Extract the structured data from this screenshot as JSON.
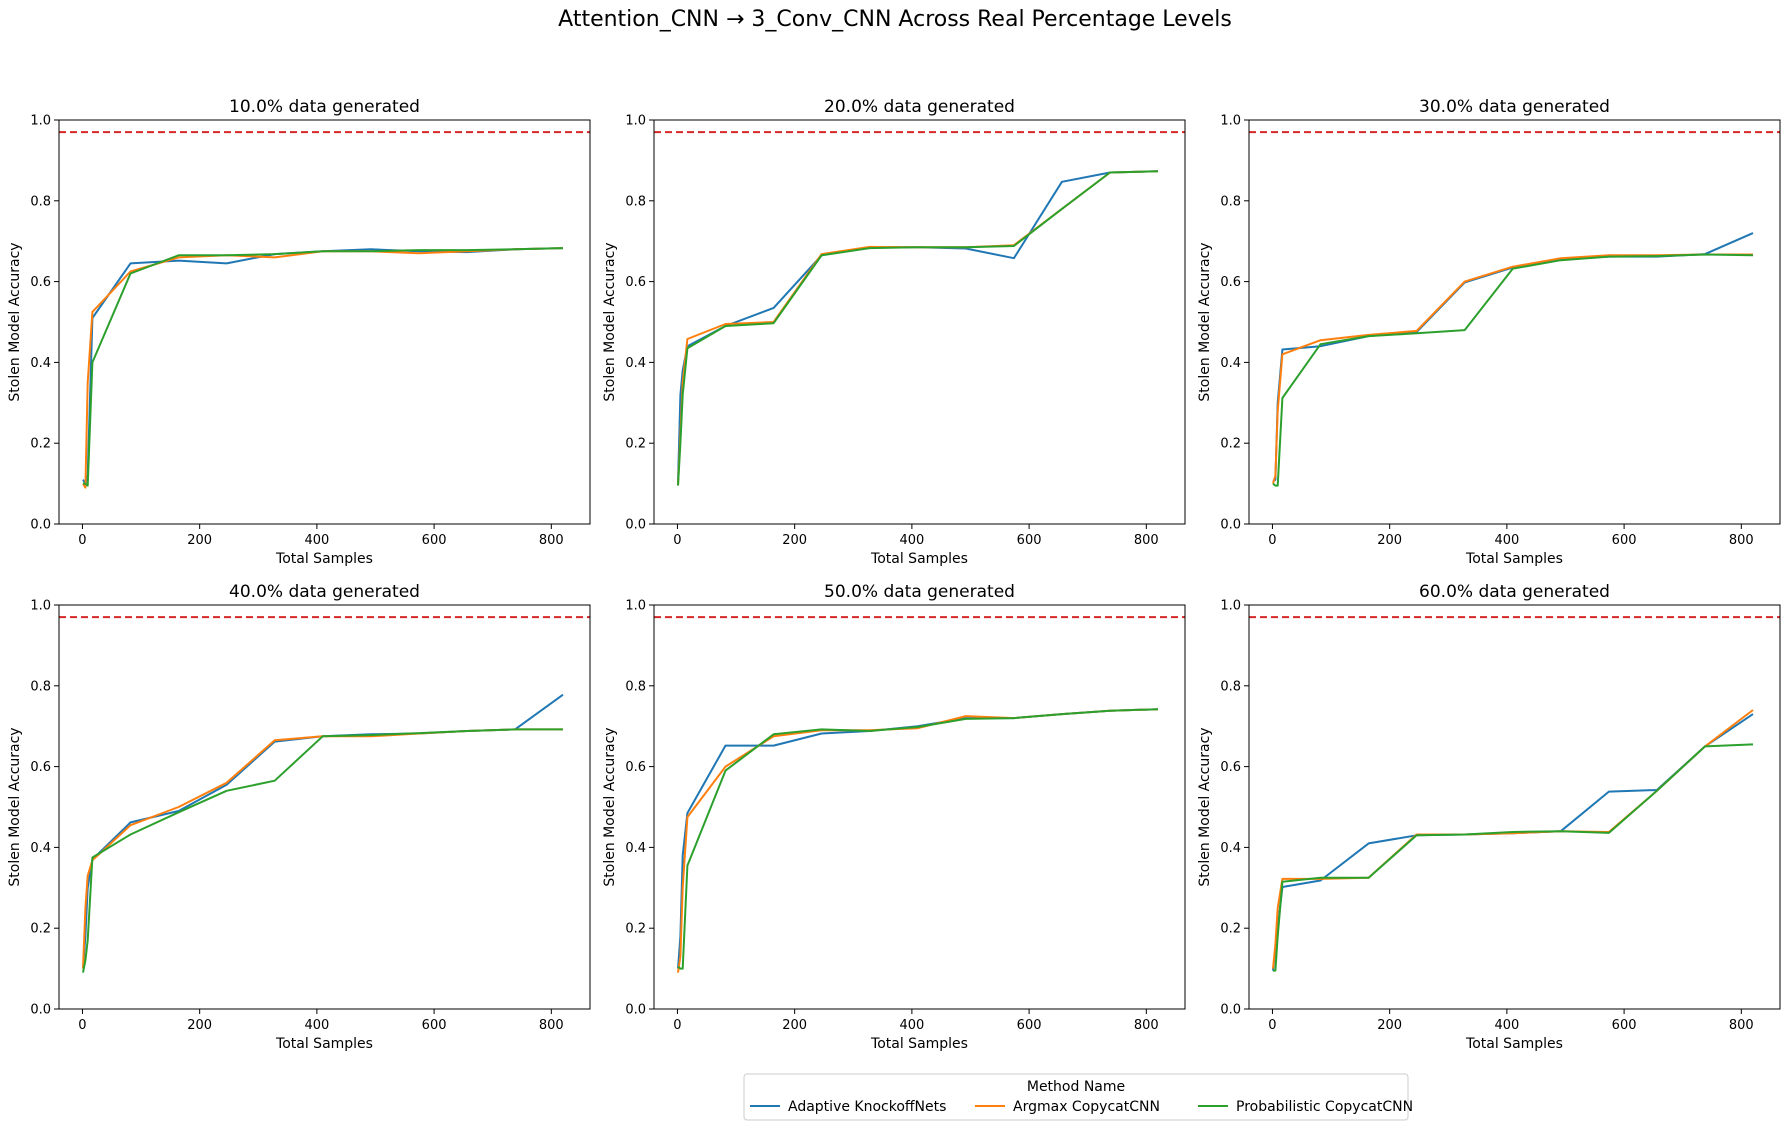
{
  "figure": {
    "title": "Attention_CNN → 3_Conv_CNN Across Real Percentage Levels"
  },
  "legend": {
    "title": "Method Name",
    "placement": "bottom-center",
    "entries": [
      {
        "name": "Adaptive KnockoffNets",
        "color": "#1f77b4"
      },
      {
        "name": "Argmax CopycatCNN",
        "color": "#ff7f0e"
      },
      {
        "name": "Probabilistic CopycatCNN",
        "color": "#2ca02c"
      }
    ]
  },
  "reference_line": {
    "y": 0.97,
    "color": "#d62728",
    "style": "dashed"
  },
  "chart_data": [
    {
      "type": "line",
      "title": "10.0% data generated",
      "xlabel": "Total Samples",
      "ylabel": "Stolen Model Accuracy",
      "xlim": [
        -40,
        866
      ],
      "ylim": [
        0,
        1
      ],
      "xticks": [
        0,
        200,
        400,
        600,
        800
      ],
      "yticks": [
        0.0,
        0.2,
        0.4,
        0.6,
        0.8,
        1.0
      ],
      "grid": false,
      "series": [
        {
          "name": "Adaptive KnockoffNets",
          "x": [
            1,
            5,
            9,
            17,
            82,
            164,
            246,
            328,
            410,
            492,
            574,
            656,
            738,
            820
          ],
          "y": [
            0.11,
            0.1,
            0.12,
            0.51,
            0.645,
            0.652,
            0.645,
            0.668,
            0.675,
            0.68,
            0.675,
            0.673,
            0.68,
            0.683
          ]
        },
        {
          "name": "Argmax CopycatCNN",
          "x": [
            1,
            5,
            9,
            17,
            82,
            164,
            246,
            328,
            410,
            492,
            574,
            656,
            738,
            820
          ],
          "y": [
            0.1,
            0.09,
            0.35,
            0.525,
            0.625,
            0.66,
            0.665,
            0.66,
            0.675,
            0.675,
            0.67,
            0.675,
            0.68,
            0.683
          ]
        },
        {
          "name": "Probabilistic CopycatCNN",
          "x": [
            1,
            5,
            9,
            17,
            82,
            164,
            246,
            328,
            410,
            492,
            574,
            656,
            738,
            820
          ],
          "y": [
            0.1,
            0.1,
            0.095,
            0.4,
            0.62,
            0.665,
            0.665,
            0.668,
            0.675,
            0.675,
            0.678,
            0.678,
            0.68,
            0.683
          ]
        }
      ]
    },
    {
      "type": "line",
      "title": "20.0% data generated",
      "xlabel": "Total Samples",
      "ylabel": "Stolen Model Accuracy",
      "xlim": [
        -40,
        866
      ],
      "ylim": [
        0,
        1
      ],
      "xticks": [
        0,
        200,
        400,
        600,
        800
      ],
      "yticks": [
        0.0,
        0.2,
        0.4,
        0.6,
        0.8,
        1.0
      ],
      "grid": false,
      "series": [
        {
          "name": "Adaptive KnockoffNets",
          "x": [
            1,
            5,
            9,
            17,
            82,
            164,
            246,
            328,
            410,
            492,
            574,
            656,
            738,
            820
          ],
          "y": [
            0.1,
            0.32,
            0.38,
            0.44,
            0.49,
            0.535,
            0.665,
            0.685,
            0.685,
            0.682,
            0.658,
            0.847,
            0.87,
            0.873
          ]
        },
        {
          "name": "Argmax CopycatCNN",
          "x": [
            1,
            5,
            9,
            17,
            82,
            164,
            246,
            328,
            410,
            492,
            574,
            656,
            738,
            820
          ],
          "y": [
            0.095,
            0.22,
            0.35,
            0.458,
            0.495,
            0.5,
            0.668,
            0.686,
            0.685,
            0.685,
            0.69,
            0.78,
            0.87,
            0.873
          ]
        },
        {
          "name": "Probabilistic CopycatCNN",
          "x": [
            1,
            5,
            9,
            17,
            82,
            164,
            246,
            328,
            410,
            492,
            574,
            656,
            738,
            820
          ],
          "y": [
            0.095,
            0.2,
            0.32,
            0.435,
            0.49,
            0.497,
            0.665,
            0.683,
            0.685,
            0.685,
            0.688,
            0.78,
            0.87,
            0.873
          ]
        }
      ]
    },
    {
      "type": "line",
      "title": "30.0% data generated",
      "xlabel": "Total Samples",
      "ylabel": "Stolen Model Accuracy",
      "xlim": [
        -40,
        866
      ],
      "ylim": [
        0,
        1
      ],
      "xticks": [
        0,
        200,
        400,
        600,
        800
      ],
      "yticks": [
        0.0,
        0.2,
        0.4,
        0.6,
        0.8,
        1.0
      ],
      "grid": false,
      "series": [
        {
          "name": "Adaptive KnockoffNets",
          "x": [
            1,
            5,
            9,
            17,
            82,
            164,
            246,
            328,
            410,
            492,
            574,
            656,
            738,
            820
          ],
          "y": [
            0.105,
            0.11,
            0.3,
            0.432,
            0.44,
            0.465,
            0.475,
            0.598,
            0.635,
            0.655,
            0.662,
            0.662,
            0.668,
            0.72
          ]
        },
        {
          "name": "Argmax CopycatCNN",
          "x": [
            1,
            5,
            9,
            17,
            82,
            164,
            246,
            328,
            410,
            492,
            574,
            656,
            738,
            820
          ],
          "y": [
            0.1,
            0.12,
            0.28,
            0.42,
            0.455,
            0.468,
            0.478,
            0.6,
            0.637,
            0.658,
            0.665,
            0.665,
            0.667,
            0.667
          ]
        },
        {
          "name": "Probabilistic CopycatCNN",
          "x": [
            1,
            5,
            9,
            17,
            82,
            164,
            246,
            328,
            410,
            492,
            574,
            656,
            738,
            820
          ],
          "y": [
            0.1,
            0.095,
            0.095,
            0.312,
            0.445,
            0.465,
            0.472,
            0.48,
            0.632,
            0.653,
            0.662,
            0.663,
            0.667,
            0.665
          ]
        }
      ]
    },
    {
      "type": "line",
      "title": "40.0% data generated",
      "xlabel": "Total Samples",
      "ylabel": "Stolen Model Accuracy",
      "xlim": [
        -40,
        866
      ],
      "ylim": [
        0,
        1
      ],
      "xticks": [
        0,
        200,
        400,
        600,
        800
      ],
      "yticks": [
        0.0,
        0.2,
        0.4,
        0.6,
        0.8,
        1.0
      ],
      "grid": false,
      "series": [
        {
          "name": "Adaptive KnockoffNets",
          "x": [
            1,
            5,
            9,
            17,
            82,
            164,
            246,
            328,
            410,
            492,
            574,
            656,
            738,
            820
          ],
          "y": [
            0.1,
            0.18,
            0.3,
            0.37,
            0.462,
            0.49,
            0.555,
            0.662,
            0.675,
            0.68,
            0.682,
            0.688,
            0.692,
            0.778
          ]
        },
        {
          "name": "Argmax CopycatCNN",
          "x": [
            1,
            5,
            9,
            17,
            82,
            164,
            246,
            328,
            410,
            492,
            574,
            656,
            738,
            820
          ],
          "y": [
            0.1,
            0.25,
            0.33,
            0.368,
            0.455,
            0.5,
            0.56,
            0.665,
            0.675,
            0.675,
            0.682,
            0.688,
            0.692,
            0.692
          ]
        },
        {
          "name": "Probabilistic CopycatCNN",
          "x": [
            1,
            5,
            9,
            17,
            82,
            164,
            246,
            328,
            410,
            492,
            574,
            656,
            738,
            820
          ],
          "y": [
            0.09,
            0.12,
            0.17,
            0.375,
            0.432,
            0.487,
            0.54,
            0.565,
            0.675,
            0.678,
            0.683,
            0.688,
            0.692,
            0.692
          ]
        }
      ]
    },
    {
      "type": "line",
      "title": "50.0% data generated",
      "xlabel": "Total Samples",
      "ylabel": "Stolen Model Accuracy",
      "xlim": [
        -40,
        866
      ],
      "ylim": [
        0,
        1
      ],
      "xticks": [
        0,
        200,
        400,
        600,
        800
      ],
      "yticks": [
        0.0,
        0.2,
        0.4,
        0.6,
        0.8,
        1.0
      ],
      "grid": false,
      "series": [
        {
          "name": "Adaptive KnockoffNets",
          "x": [
            1,
            5,
            9,
            17,
            82,
            164,
            246,
            328,
            410,
            492,
            574,
            656,
            738,
            820
          ],
          "y": [
            0.1,
            0.18,
            0.38,
            0.485,
            0.652,
            0.652,
            0.682,
            0.688,
            0.7,
            0.72,
            0.72,
            0.73,
            0.738,
            0.742
          ]
        },
        {
          "name": "Argmax CopycatCNN",
          "x": [
            1,
            5,
            9,
            17,
            82,
            164,
            246,
            328,
            410,
            492,
            574,
            656,
            738,
            820
          ],
          "y": [
            0.09,
            0.13,
            0.3,
            0.475,
            0.6,
            0.675,
            0.69,
            0.69,
            0.695,
            0.725,
            0.72,
            0.73,
            0.738,
            0.742
          ]
        },
        {
          "name": "Probabilistic CopycatCNN",
          "x": [
            1,
            5,
            9,
            17,
            82,
            164,
            246,
            328,
            410,
            492,
            574,
            656,
            738,
            820
          ],
          "y": [
            0.105,
            0.1,
            0.1,
            0.355,
            0.59,
            0.68,
            0.692,
            0.688,
            0.698,
            0.718,
            0.72,
            0.73,
            0.738,
            0.742
          ]
        }
      ]
    },
    {
      "type": "line",
      "title": "60.0% data generated",
      "xlabel": "Total Samples",
      "ylabel": "Stolen Model Accuracy",
      "xlim": [
        -40,
        866
      ],
      "ylim": [
        0,
        1
      ],
      "xticks": [
        0,
        200,
        400,
        600,
        800
      ],
      "yticks": [
        0.0,
        0.2,
        0.4,
        0.6,
        0.8,
        1.0
      ],
      "grid": false,
      "series": [
        {
          "name": "Adaptive KnockoffNets",
          "x": [
            1,
            5,
            9,
            17,
            82,
            164,
            246,
            328,
            410,
            492,
            574,
            656,
            738,
            820
          ],
          "y": [
            0.095,
            0.15,
            0.2,
            0.302,
            0.318,
            0.41,
            0.43,
            0.432,
            0.435,
            0.44,
            0.538,
            0.542,
            0.65,
            0.73
          ]
        },
        {
          "name": "Argmax CopycatCNN",
          "x": [
            1,
            5,
            9,
            17,
            82,
            164,
            246,
            328,
            410,
            492,
            574,
            656,
            738,
            820
          ],
          "y": [
            0.1,
            0.16,
            0.25,
            0.322,
            0.322,
            0.325,
            0.432,
            0.432,
            0.435,
            0.44,
            0.438,
            0.54,
            0.65,
            0.74
          ]
        },
        {
          "name": "Probabilistic CopycatCNN",
          "x": [
            1,
            5,
            9,
            17,
            82,
            164,
            246,
            328,
            410,
            492,
            574,
            656,
            738,
            820
          ],
          "y": [
            0.095,
            0.095,
            0.18,
            0.315,
            0.325,
            0.325,
            0.43,
            0.432,
            0.438,
            0.44,
            0.436,
            0.54,
            0.65,
            0.655
          ]
        }
      ]
    }
  ]
}
